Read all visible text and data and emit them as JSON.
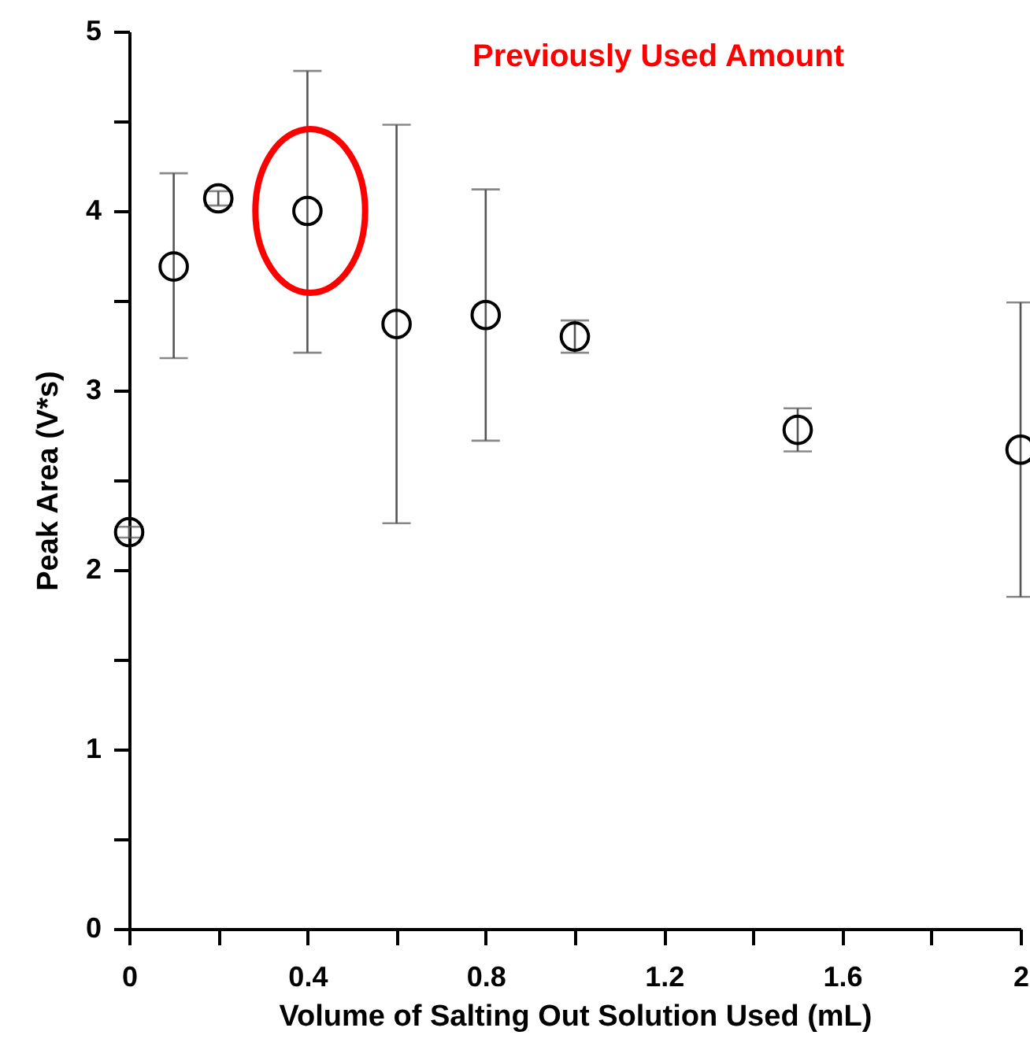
{
  "chart_data": {
    "type": "scatter",
    "xlabel": "Volume of Salting Out Solution Used (mL)",
    "ylabel": "Peak Area (V*s)",
    "x": [
      0,
      0.1,
      0.2,
      0.4,
      0.6,
      0.8,
      1.0,
      1.5,
      2.0
    ],
    "series": [
      {
        "color": "#000000",
        "values": [
          2.21,
          3.69,
          4.07,
          4.0,
          3.37,
          3.42,
          3.3,
          2.78,
          2.67
        ],
        "errors": [
          0.03,
          [
            3.18,
            4.21
          ],
          0.04,
          [
            3.21,
            4.78
          ],
          1.11,
          0.7,
          0.09,
          0.12,
          0.82
        ]
      }
    ],
    "marker": "circle",
    "grid": false,
    "xlim": [
      0,
      2
    ],
    "xticks": [
      0,
      {
        "value": 0.2,
        "label": null
      },
      0.4,
      {
        "value": 0.6,
        "label": null
      },
      0.8,
      {
        "value": 1.0,
        "label": null
      },
      1.2,
      {
        "value": 1.4,
        "label": null
      },
      1.6,
      {
        "value": 1.8,
        "label": null
      },
      2
    ],
    "ylim": [
      0,
      5
    ],
    "yticks": [
      0,
      {
        "value": 0.5,
        "label": null
      },
      1,
      {
        "value": 1.5,
        "label": null
      },
      2,
      {
        "value": 2.5,
        "label": null
      },
      3,
      {
        "value": 3.5,
        "label": null
      },
      4,
      {
        "value": 4.5,
        "label": null
      },
      5
    ],
    "annotations": [
      "Previously Used Amount"
    ]
  }
}
